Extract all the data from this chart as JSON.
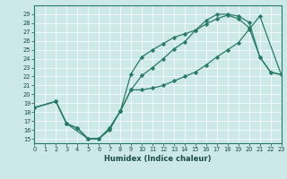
{
  "xlabel": "Humidex (Indice chaleur)",
  "xlim": [
    0,
    23
  ],
  "ylim": [
    14.5,
    30
  ],
  "xticks": [
    0,
    1,
    2,
    3,
    4,
    5,
    6,
    7,
    8,
    9,
    10,
    11,
    12,
    13,
    14,
    15,
    16,
    17,
    18,
    19,
    20,
    21,
    22,
    23
  ],
  "yticks": [
    15,
    16,
    17,
    18,
    19,
    20,
    21,
    22,
    23,
    24,
    25,
    26,
    27,
    28,
    29
  ],
  "bg_color": "#cde8e8",
  "line_color": "#2a7a6a",
  "line_width": 0.9,
  "marker": "D",
  "marker_size": 2.2,
  "curve1_x": [
    0,
    2,
    3,
    4,
    5,
    6,
    7,
    8,
    9,
    10,
    11,
    12,
    13,
    14,
    15,
    16,
    17,
    18,
    19,
    20,
    21,
    22,
    23
  ],
  "curve1_y": [
    18.5,
    19.2,
    16.7,
    16.2,
    15.0,
    15.0,
    16.2,
    18.1,
    22.3,
    24.2,
    25.0,
    25.7,
    26.4,
    26.8,
    27.2,
    28.3,
    29.0,
    29.0,
    28.8,
    28.1,
    24.2,
    22.5,
    22.2
  ],
  "curve2_x": [
    0,
    2,
    3,
    4,
    5,
    6,
    7,
    8,
    9,
    10,
    11,
    12,
    13,
    14,
    15,
    16,
    17,
    18,
    19,
    20,
    21,
    22,
    23
  ],
  "curve2_y": [
    18.5,
    19.2,
    16.7,
    16.2,
    15.0,
    15.0,
    16.2,
    18.1,
    20.5,
    22.1,
    23.0,
    24.0,
    25.1,
    25.9,
    27.2,
    27.9,
    28.5,
    28.9,
    28.5,
    27.5,
    24.2,
    22.5,
    22.2
  ],
  "curve3_x": [
    0,
    2,
    3,
    5,
    6,
    7,
    8,
    9,
    10,
    11,
    12,
    13,
    14,
    15,
    16,
    17,
    18,
    19,
    20,
    21,
    23
  ],
  "curve3_y": [
    18.5,
    19.2,
    16.7,
    15.0,
    15.0,
    16.0,
    18.1,
    20.5,
    20.5,
    20.7,
    21.0,
    21.5,
    22.0,
    22.5,
    23.3,
    24.2,
    25.0,
    25.8,
    27.3,
    28.8,
    22.2
  ]
}
